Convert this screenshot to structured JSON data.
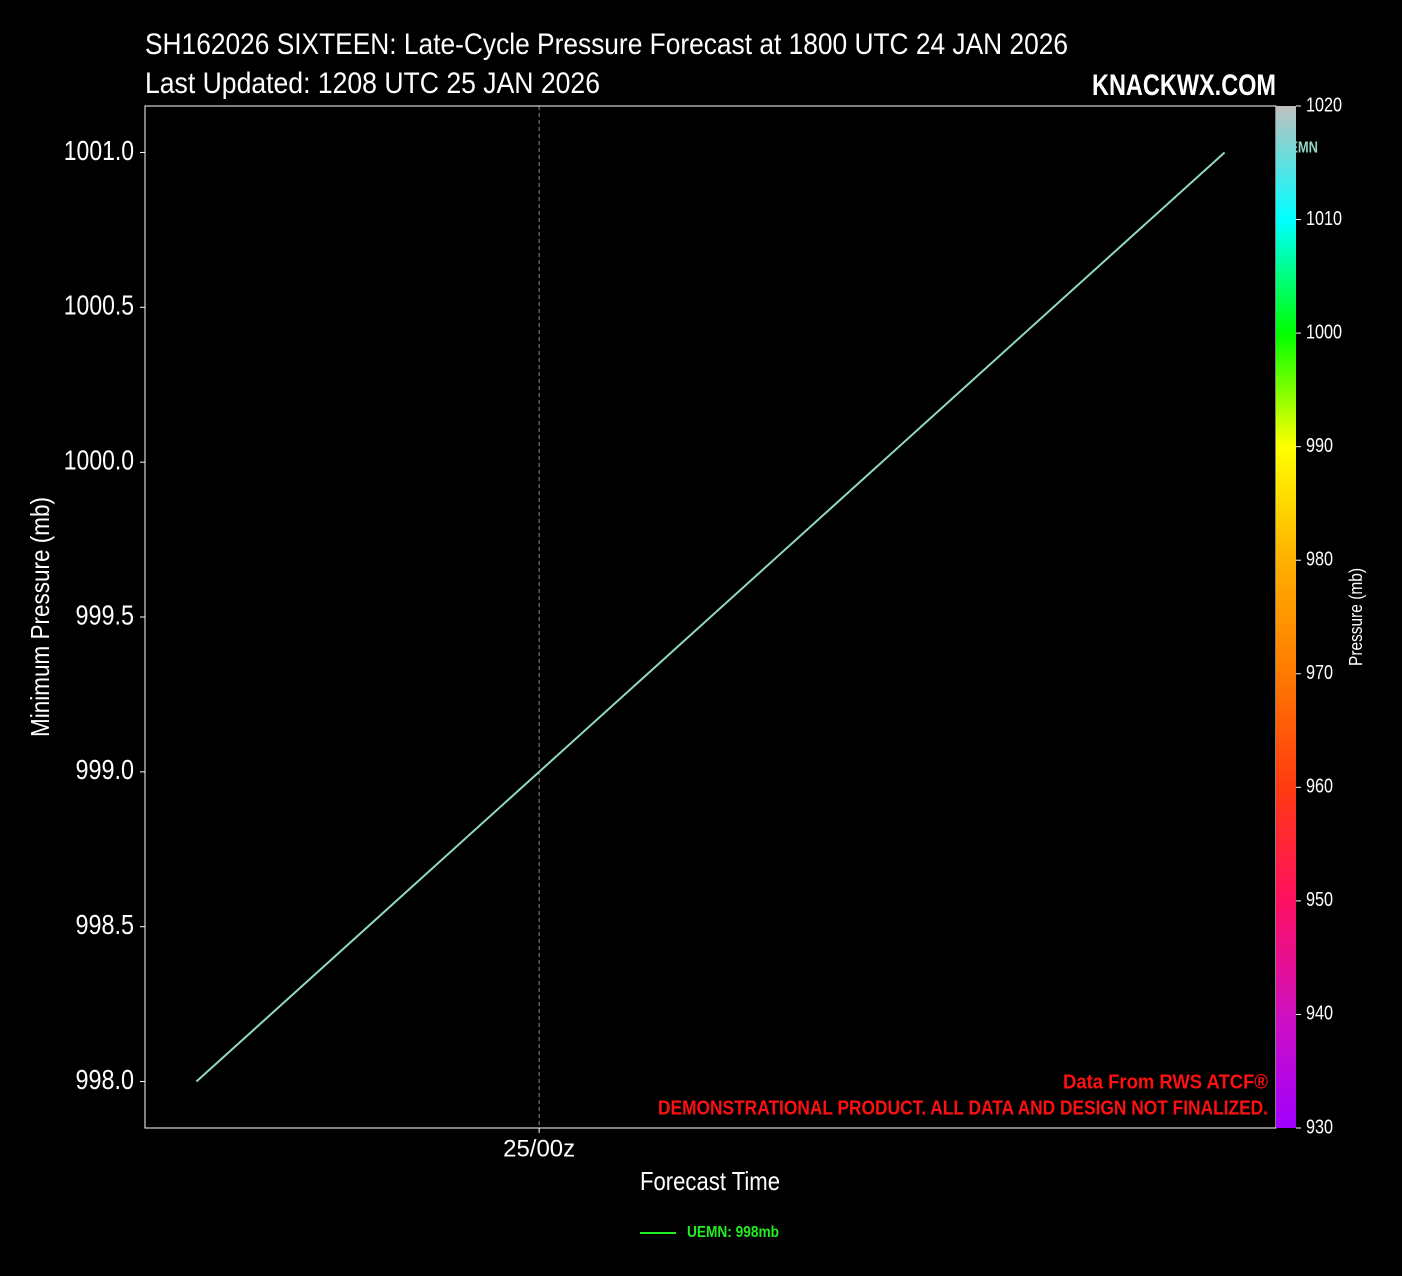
{
  "chart_data": {
    "type": "line",
    "title": "SH162026 SIXTEEN: Late-Cycle Pressure Forecast at 1800 UTC 24 JAN 2026",
    "subtitle": "Last Updated: 1208 UTC 25 JAN 2026",
    "watermark": "KNACKWX.COM",
    "x_label": "Forecast Time",
    "y_label": "Minimum Pressure (mb)",
    "categories": [
      null,
      "25/00z",
      null,
      null
    ],
    "xlim": [
      -0.15,
      3.15
    ],
    "series": [
      {
        "name": "UEMN",
        "color": "#8fd8c8",
        "values": [
          998,
          999,
          1000,
          1001
        ],
        "legend_label": "UEMN: 998mb",
        "legend_color": "#22ee22"
      }
    ],
    "ylim": [
      997.85,
      1001.15
    ],
    "yticks": [
      {
        "value": 998,
        "label": "998.0"
      },
      {
        "value": 998.5,
        "label": "998.5"
      },
      {
        "value": 999,
        "label": "999.0"
      },
      {
        "value": 999.5,
        "label": "999.5"
      },
      {
        "value": 1000,
        "label": "1000.0"
      },
      {
        "value": 1000.5,
        "label": "1000.5"
      },
      {
        "value": 1001,
        "label": "1001.0"
      }
    ],
    "annotations": [
      "Data From RWS ATCF®",
      "DEMONSTRATIONAL PRODUCT. ALL DATA AND DESIGN NOT FINALIZED."
    ],
    "colorbar": {
      "label": "Pressure (mb)",
      "lim": [
        930,
        1020
      ],
      "ticks": [
        930,
        940,
        950,
        960,
        970,
        980,
        990,
        1000,
        1010,
        1020
      ],
      "colors": [
        "#a000ff",
        "#d010c0",
        "#ff1060",
        "#ff3a10",
        "#ff7a00",
        "#ffb000",
        "#ffff00",
        "#00ff00",
        "#00ffff",
        "#c0c0c0"
      ]
    }
  }
}
